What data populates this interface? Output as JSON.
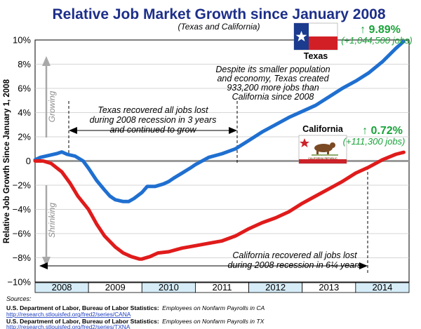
{
  "chart_data": {
    "type": "line",
    "title": "Relative Job Market Growth since January 2008",
    "subtitle": "(Texas and California)",
    "ylabel": "Relative Job Growth Since January 1, 2008",
    "ylim": [
      -10,
      10
    ],
    "xlim": [
      2008,
      2015
    ],
    "grid": true,
    "yticks": [
      -10,
      -8,
      -6,
      -4,
      -2,
      0,
      2,
      4,
      6,
      8,
      10
    ],
    "ytick_labels": [
      "−10%",
      "−8%",
      "−6%",
      "−4%",
      "−2%",
      "0",
      "2%",
      "4%",
      "6%",
      "8%",
      "10%"
    ],
    "x_bands": [
      "2008",
      "2009",
      "2010",
      "2011",
      "2012",
      "2013",
      "2014"
    ],
    "series": [
      {
        "name": "Texas",
        "color": "#1f6fd0",
        "x": [
          2008.0,
          2008.1,
          2008.25,
          2008.4,
          2008.5,
          2008.6,
          2008.75,
          2008.9,
          2009.0,
          2009.15,
          2009.3,
          2009.4,
          2009.5,
          2009.65,
          2009.75,
          2009.85,
          2010.0,
          2010.1,
          2010.25,
          2010.4,
          2010.5,
          2010.6,
          2010.75,
          2010.9,
          2011.0,
          2011.25,
          2011.5,
          2011.75,
          2012.0,
          2012.25,
          2012.5,
          2012.75,
          2013.0,
          2013.25,
          2013.5,
          2013.75,
          2014.0,
          2014.25,
          2014.5,
          2014.75,
          2014.9
        ],
        "y": [
          0.1,
          0.3,
          0.45,
          0.6,
          0.75,
          0.55,
          0.4,
          0.0,
          -0.6,
          -1.6,
          -2.4,
          -2.9,
          -3.2,
          -3.35,
          -3.35,
          -3.1,
          -2.6,
          -2.1,
          -2.1,
          -1.9,
          -1.7,
          -1.4,
          -1.0,
          -0.6,
          -0.3,
          0.3,
          0.6,
          1.0,
          1.7,
          2.4,
          3.0,
          3.6,
          4.1,
          4.6,
          5.3,
          6.0,
          6.6,
          7.3,
          8.2,
          9.3,
          9.89
        ]
      },
      {
        "name": "California",
        "color": "#e01b1b",
        "x": [
          2008.0,
          2008.15,
          2008.3,
          2008.5,
          2008.65,
          2008.8,
          2009.0,
          2009.15,
          2009.3,
          2009.5,
          2009.65,
          2009.8,
          2009.95,
          2010.0,
          2010.15,
          2010.3,
          2010.5,
          2010.75,
          2011.0,
          2011.25,
          2011.5,
          2011.75,
          2012.0,
          2012.25,
          2012.5,
          2012.75,
          2013.0,
          2013.25,
          2013.5,
          2013.75,
          2014.0,
          2014.25,
          2014.5,
          2014.75,
          2014.9
        ],
        "y": [
          0.0,
          0.0,
          -0.2,
          -0.9,
          -1.8,
          -2.9,
          -4.0,
          -5.2,
          -6.2,
          -7.1,
          -7.6,
          -7.9,
          -8.1,
          -8.1,
          -7.9,
          -7.6,
          -7.5,
          -7.2,
          -7.0,
          -6.8,
          -6.6,
          -6.2,
          -5.6,
          -5.1,
          -4.7,
          -4.2,
          -3.5,
          -2.9,
          -2.3,
          -1.7,
          -1.0,
          -0.5,
          0.1,
          0.55,
          0.72
        ]
      }
    ],
    "axis_arrow_labels": {
      "growing": "Growing",
      "shrinking": "Shrinking"
    },
    "annotations": {
      "texas_recovery": [
        "Texas recovered all jobs lost",
        "during 2008 recession in 3 years",
        "and continued to grow"
      ],
      "texas_vs_california": [
        "Despite its smaller population",
        "and economy, Texas created",
        "933,200 more jobs than",
        "California since 2008"
      ],
      "california_recovery": [
        "California recovered all jobs lost",
        "during 2008 recession in 6¼ years"
      ]
    },
    "callouts": {
      "texas": {
        "label": "Texas",
        "pct": "↑ 9.89%",
        "jobs": "(+1,044,500 jobs)"
      },
      "california": {
        "label": "California",
        "pct": "↑ 0.72%",
        "jobs": "(+111,300 jobs)",
        "flag_text": "CALIFORNIA REPUBLIC"
      }
    }
  },
  "sources": {
    "heading": "Sources:",
    "items": [
      {
        "org": "U.S. Department of Labor, Bureau of Labor Statistics:",
        "title": "Employees on Nonfarm Payrolls in CA",
        "url": "http://research.stlouisfed.org/fred2/series/CANA"
      },
      {
        "org": "U.S. Department of Labor, Bureau of Labor Statistics:",
        "title": "Employees on Nonfarm Payrolls in TX",
        "url": "http://research.stlouisfed.org/fred2/series/TXNA"
      }
    ]
  },
  "colors": {
    "accent_green": "#1aa33a",
    "axis_blue_band": "#d6ecf7",
    "zero_line": "#9a9a9a"
  }
}
